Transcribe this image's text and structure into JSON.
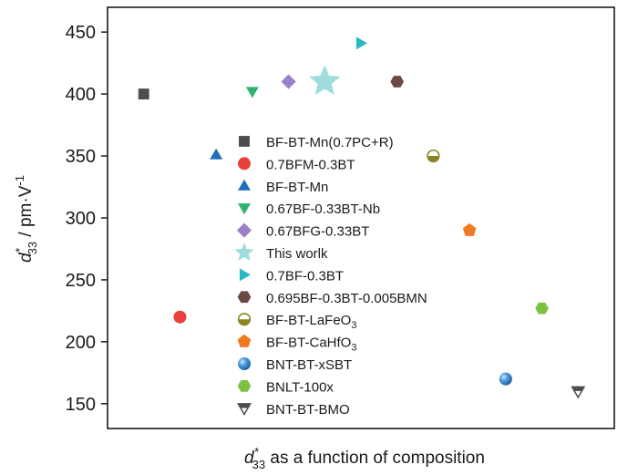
{
  "chart_data": {
    "type": "scatter",
    "title": "",
    "xlabel": {
      "main": "d",
      "sub": "33",
      "sup": "*",
      "rest": " as a function of composition"
    },
    "ylabel": {
      "main": "d",
      "sub": "33",
      "sup": "*",
      "rest": " / pm·V",
      "exp": "-1"
    },
    "ylim": [
      130,
      470
    ],
    "yticks": [
      150,
      200,
      250,
      300,
      350,
      400,
      450
    ],
    "xlim": [
      0,
      14
    ],
    "grid": false,
    "legend_position": "center",
    "series": [
      {
        "name": "BF-BT-Mn(0.7PC+R)",
        "label_parts": [
          "BF-BT-Mn(0.7PC+R)"
        ],
        "x": 1.0,
        "y": 400,
        "color": "#4d4d4d",
        "marker": "square"
      },
      {
        "name": "0.7BFM-0.3BT",
        "label_parts": [
          "0.7BFM-0.3BT"
        ],
        "x": 2.0,
        "y": 220,
        "color": "#e8413c",
        "marker": "circle"
      },
      {
        "name": "BF-BT-Mn",
        "label_parts": [
          "BF-BT-Mn"
        ],
        "x": 3.0,
        "y": 351,
        "color": "#1f6fbf",
        "marker": "triangle-up"
      },
      {
        "name": "0.67BF-0.33BT-Nb",
        "label_parts": [
          "0.67BF-0.33BT-Nb"
        ],
        "x": 4.0,
        "y": 402,
        "color": "#2db36a",
        "marker": "triangle-down"
      },
      {
        "name": "0.67BFG-0.33BT",
        "label_parts": [
          "0.67BFG-0.33BT"
        ],
        "x": 5.0,
        "y": 410,
        "color": "#9b7fc8",
        "marker": "diamond"
      },
      {
        "name": "This worlk",
        "label_parts": [
          "This worlk"
        ],
        "x": 6.0,
        "y": 410,
        "color": "#9fdcdc",
        "marker": "star"
      },
      {
        "name": "0.7BF-0.3BT",
        "label_parts": [
          "0.7BF-0.3BT"
        ],
        "x": 7.0,
        "y": 441,
        "color": "#2bb8c4",
        "marker": "triangle-right"
      },
      {
        "name": "0.695BF-0.3BT-0.005BMN",
        "label_parts": [
          "0.695BF-0.3BT-0.005BMN"
        ],
        "x": 8.0,
        "y": 410,
        "color": "#6b4a45",
        "marker": "hexagon"
      },
      {
        "name": "BF-BT-LaFeO3",
        "label_parts": [
          "BF-BT-LaFeO",
          "3"
        ],
        "x": 9.0,
        "y": 350,
        "color": "#8c8424",
        "marker": "half-circle"
      },
      {
        "name": "BF-BT-CaHfO3",
        "label_parts": [
          "BF-BT-CaHfO",
          "3"
        ],
        "x": 10.0,
        "y": 290,
        "color": "#f07a22",
        "marker": "pentagon"
      },
      {
        "name": "BNT-BT-xSBT",
        "label_parts": [
          "BNT-BT-xSBT"
        ],
        "x": 11.0,
        "y": 170,
        "color": "#3f8fd6",
        "marker": "sphere"
      },
      {
        "name": "BNLT-100x",
        "label_parts": [
          "BNLT-100x"
        ],
        "x": 12.0,
        "y": 227,
        "color": "#7cc242",
        "marker": "hexagon"
      },
      {
        "name": "BNT-BT-BMO",
        "label_parts": [
          "BNT-BT-BMO"
        ],
        "x": 13.0,
        "y": 160,
        "color": "#4d4d4d",
        "marker": "triangle-down-split"
      }
    ]
  }
}
